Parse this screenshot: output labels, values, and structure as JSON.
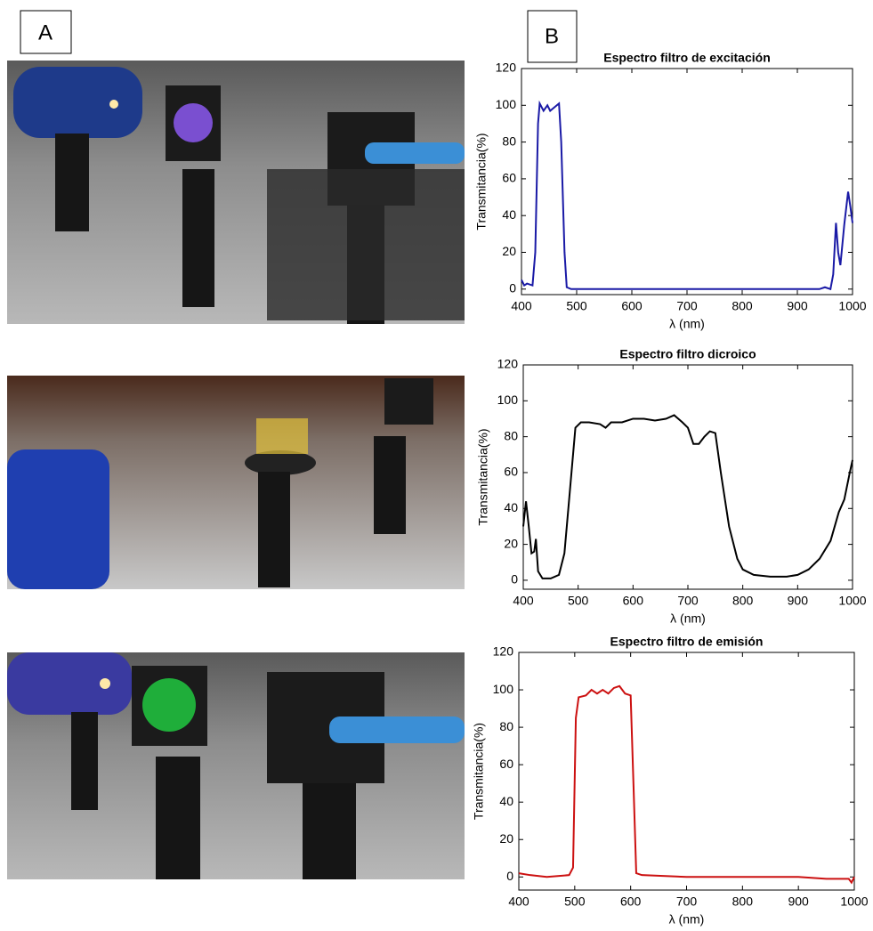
{
  "panels": {
    "left": "A",
    "right": "B"
  },
  "chart_data": [
    {
      "type": "line",
      "title": "Espectro filtro de excitación",
      "x_label": "λ (nm)",
      "y_label": "Transmitancia(%)",
      "xlim": [
        400,
        1000
      ],
      "ylim": [
        -3,
        120
      ],
      "xticks": [
        400,
        500,
        600,
        700,
        800,
        900,
        1000
      ],
      "yticks": [
        0,
        20,
        40,
        60,
        80,
        100,
        120
      ],
      "x": [
        400,
        405,
        410,
        420,
        425,
        430,
        433,
        440,
        447,
        452,
        460,
        468,
        472,
        478,
        482,
        490,
        550,
        600,
        700,
        800,
        900,
        940,
        950,
        960,
        965,
        970,
        974,
        978,
        985,
        992,
        996,
        1000
      ],
      "series": [
        {
          "color": "#1a1aa6",
          "values": [
            5,
            2,
            3,
            2,
            20,
            90,
            101,
            97,
            100,
            97,
            99,
            101,
            80,
            20,
            1,
            0,
            0,
            0,
            0,
            0,
            0,
            0,
            1,
            0,
            8,
            36,
            20,
            13,
            35,
            53,
            45,
            36
          ]
        }
      ]
    },
    {
      "type": "line",
      "title": "Espectro filtro dicroico",
      "x_label": "λ (nm)",
      "y_label": "Transmitancia(%)",
      "xlim": [
        400,
        1000
      ],
      "ylim": [
        -5,
        120
      ],
      "xticks": [
        400,
        500,
        600,
        700,
        800,
        900,
        1000
      ],
      "yticks": [
        0,
        20,
        40,
        60,
        80,
        100,
        120
      ],
      "x": [
        400,
        405,
        410,
        415,
        420,
        423,
        427,
        435,
        450,
        465,
        475,
        485,
        495,
        505,
        520,
        540,
        550,
        560,
        580,
        600,
        620,
        640,
        660,
        675,
        690,
        700,
        710,
        720,
        730,
        740,
        750,
        760,
        775,
        790,
        800,
        820,
        850,
        880,
        900,
        920,
        940,
        960,
        975,
        985,
        995,
        1000
      ],
      "series": [
        {
          "color": "#000000",
          "values": [
            30,
            44,
            30,
            15,
            16,
            23,
            5,
            1,
            1,
            3,
            15,
            50,
            85,
            88,
            88,
            87,
            85,
            88,
            88,
            90,
            90,
            89,
            90,
            92,
            88,
            85,
            76,
            76,
            80,
            83,
            82,
            60,
            30,
            12,
            6,
            3,
            2,
            2,
            3,
            6,
            12,
            22,
            38,
            45,
            60,
            67
          ]
        }
      ]
    },
    {
      "type": "line",
      "title": "Espectro filtro de emisión",
      "x_label": "λ (nm)",
      "y_label": "Transmitancia(%)",
      "xlim": [
        400,
        1000
      ],
      "ylim": [
        -7,
        120
      ],
      "xticks": [
        400,
        500,
        600,
        700,
        800,
        900,
        1000
      ],
      "yticks": [
        0,
        20,
        40,
        60,
        80,
        100,
        120
      ],
      "x": [
        400,
        420,
        450,
        490,
        497,
        502,
        507,
        520,
        530,
        540,
        550,
        560,
        570,
        580,
        590,
        600,
        605,
        610,
        620,
        700,
        800,
        900,
        950,
        990,
        995,
        1000
      ],
      "series": [
        {
          "color": "#cc1111",
          "values": [
            2,
            1,
            0,
            1,
            5,
            85,
            96,
            97,
            100,
            98,
            100,
            98,
            101,
            102,
            98,
            97,
            50,
            2,
            1,
            0,
            0,
            0,
            -1,
            -1,
            -3,
            0
          ]
        }
      ]
    }
  ]
}
